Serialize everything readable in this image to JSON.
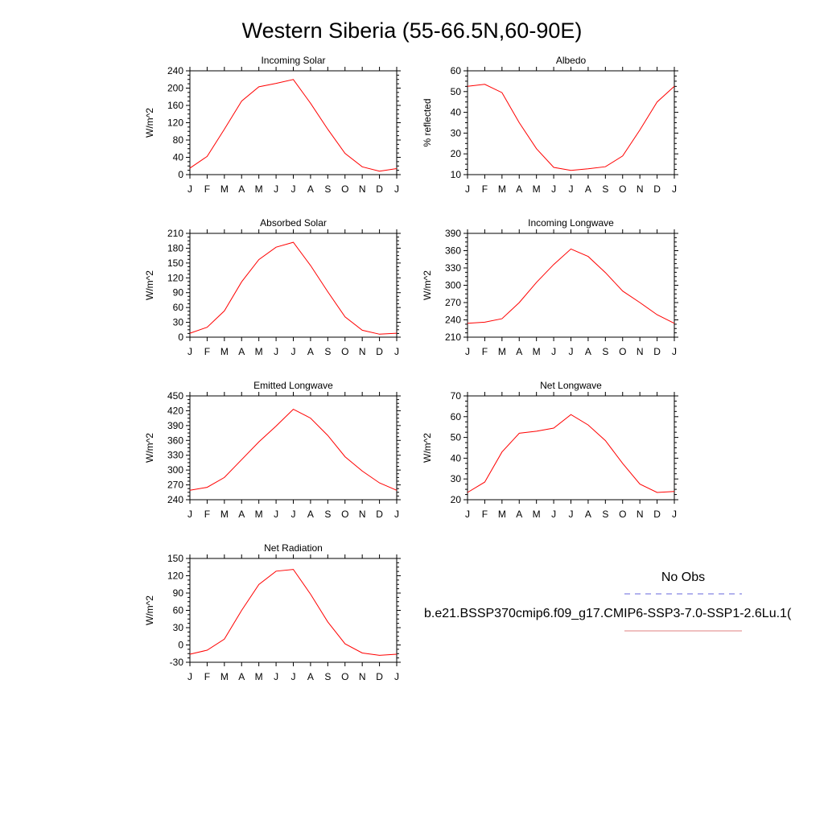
{
  "title": "Western Siberia (55-66.5N,60-90E)",
  "months": [
    "J",
    "F",
    "M",
    "A",
    "M",
    "J",
    "J",
    "A",
    "S",
    "O",
    "N",
    "D",
    "J"
  ],
  "legend": {
    "entries": [
      {
        "label": "No Obs",
        "color": "#6666dd",
        "style": "dashed"
      },
      {
        "label": "b.e21.BSSP370cmip6.f09_g17.CMIP6-SSP3-7.0-SSP1-2.6Lu.1(",
        "color": "#e08080",
        "style": "solid"
      }
    ]
  },
  "chart_data": [
    {
      "type": "line",
      "title": "Incoming Solar",
      "ylabel": "W/m^2",
      "ylim": [
        0,
        240
      ],
      "yticks": [
        0,
        40,
        80,
        120,
        160,
        200,
        240
      ],
      "series": [
        {
          "color": "#ff0000",
          "values": [
            15,
            42,
            105,
            170,
            203,
            211,
            220,
            165,
            105,
            49,
            18,
            8,
            14
          ]
        }
      ]
    },
    {
      "type": "line",
      "title": "Albedo",
      "ylabel": "% reflected",
      "ylim": [
        10,
        60
      ],
      "yticks": [
        10,
        20,
        30,
        40,
        50,
        60
      ],
      "series": [
        {
          "color": "#ff0000",
          "values": [
            52.5,
            53.5,
            49.5,
            35,
            22.5,
            13.5,
            12,
            12.8,
            13.8,
            19,
            31.5,
            45,
            52.5
          ]
        }
      ]
    },
    {
      "type": "line",
      "title": "Absorbed Solar",
      "ylabel": "W/m^2",
      "ylim": [
        0,
        210
      ],
      "yticks": [
        0,
        30,
        60,
        90,
        120,
        150,
        180,
        210
      ],
      "series": [
        {
          "color": "#ff0000",
          "values": [
            8,
            20,
            53,
            112,
            157,
            182,
            192,
            145,
            92,
            41,
            14,
            6,
            8
          ]
        }
      ]
    },
    {
      "type": "line",
      "title": "Incoming Longwave",
      "ylabel": "W/m^2",
      "ylim": [
        210,
        390
      ],
      "yticks": [
        210,
        240,
        270,
        300,
        330,
        360,
        390
      ],
      "series": [
        {
          "color": "#ff0000",
          "values": [
            234,
            236,
            242,
            270,
            305,
            336,
            363,
            350,
            322,
            290,
            270,
            249,
            234
          ]
        }
      ]
    },
    {
      "type": "line",
      "title": "Emitted Longwave",
      "ylabel": "W/m^2",
      "ylim": [
        240,
        450
      ],
      "yticks": [
        240,
        270,
        300,
        330,
        360,
        390,
        420,
        450
      ],
      "series": [
        {
          "color": "#ff0000",
          "values": [
            259,
            265,
            285,
            321,
            357,
            389,
            423,
            405,
            370,
            327,
            298,
            274,
            259
          ]
        }
      ]
    },
    {
      "type": "line",
      "title": "Net Longwave",
      "ylabel": "W/m^2",
      "ylim": [
        20,
        70
      ],
      "yticks": [
        20,
        30,
        40,
        50,
        60,
        70
      ],
      "series": [
        {
          "color": "#ff0000",
          "values": [
            23.5,
            28.5,
            43,
            52,
            53,
            54.5,
            61,
            56,
            48.5,
            37.5,
            27.5,
            23.5,
            24
          ]
        }
      ]
    },
    {
      "type": "line",
      "title": "Net Radiation",
      "ylabel": "W/m^2",
      "ylim": [
        -30,
        150
      ],
      "yticks": [
        -30,
        0,
        30,
        60,
        90,
        120,
        150
      ],
      "series": [
        {
          "color": "#ff0000",
          "values": [
            -16,
            -9,
            10,
            60,
            105,
            128,
            131,
            88,
            40,
            2,
            -14,
            -18,
            -16
          ]
        }
      ]
    }
  ]
}
